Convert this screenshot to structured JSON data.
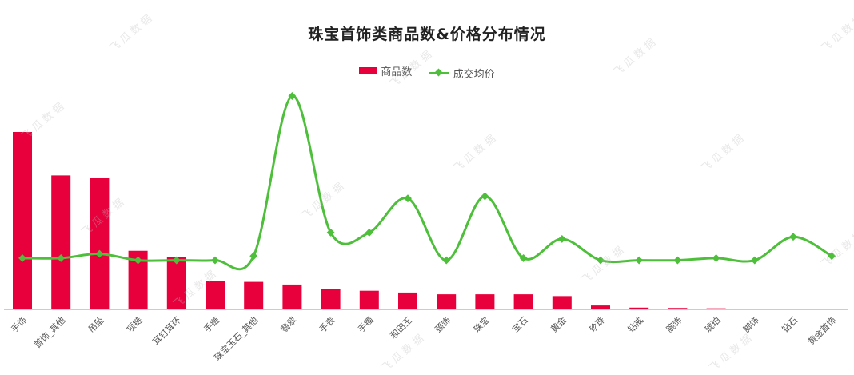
{
  "watermark": "飞瓜数据",
  "colors": {
    "bar": "#e8003c",
    "line": "#4dbf3a",
    "axis": "#cccccc"
  },
  "chart_data": {
    "type": "bar",
    "title": "珠宝首饰类商品数&价格分布情况",
    "legend": {
      "placement": "top-center"
    },
    "grid": false,
    "xlabel": "",
    "ylabel": "",
    "categories": [
      "手饰",
      "首饰_其他",
      "吊坠",
      "项链",
      "耳钉耳环",
      "手链",
      "珠宝玉石_其他",
      "翡翠",
      "手表",
      "手镯",
      "和田玉",
      "颈饰",
      "珠宝",
      "宝石",
      "黄金",
      "珍珠",
      "钻戒",
      "腕饰",
      "琥珀",
      "脚饰",
      "钻石",
      "黄金首饰"
    ],
    "series": [
      {
        "name": "商品数",
        "type": "bar",
        "values": [
          100,
          75.5,
          74,
          33,
          29.5,
          16,
          15.5,
          14,
          11.5,
          10.5,
          9.5,
          8.5,
          8.5,
          8.5,
          7.5,
          2.2,
          1.0,
          0.8,
          0.6,
          0,
          0,
          0
        ]
      },
      {
        "name": "成交均价",
        "type": "line",
        "values": [
          24,
          24,
          26,
          23,
          23,
          23,
          25,
          100,
          36,
          36,
          52,
          23,
          53,
          24,
          33,
          23,
          23,
          23,
          24,
          23,
          34,
          25
        ]
      }
    ],
    "ylim_bar": [
      0,
      100
    ],
    "ylim_line": [
      0,
      100
    ]
  }
}
